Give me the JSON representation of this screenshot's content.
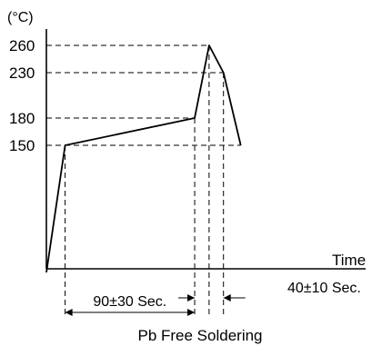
{
  "chart_data": {
    "type": "line",
    "title": "Pb Free Soldering",
    "ylabel": "(°C)",
    "xlabel": "Time",
    "y_ticks": [
      260,
      230,
      180,
      150
    ],
    "series": [
      {
        "points": [
          {
            "x": 0,
            "y": 10
          },
          {
            "x": 13,
            "y": 150
          },
          {
            "x": 103,
            "y": 180
          },
          {
            "x": 113,
            "y": 260
          },
          {
            "x": 123,
            "y": 230
          },
          {
            "x": 135,
            "y": 150
          }
        ]
      }
    ],
    "annotations": [
      {
        "label": "90±30 Sec.",
        "from_x": 13,
        "to_x": 103
      },
      {
        "label": "40±10 Sec.",
        "from_x": 103,
        "to_x": 123
      }
    ]
  }
}
